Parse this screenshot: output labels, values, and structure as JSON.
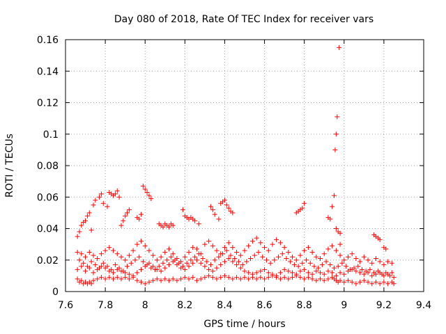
{
  "chart_data": {
    "type": "scatter",
    "title": "Day 080 of 2018, Rate Of TEC Index for receiver vars",
    "xlabel": "GPS time / hours",
    "ylabel": "ROTI / TECUs",
    "xlim": [
      7.6,
      9.4
    ],
    "ylim": [
      0,
      0.16
    ],
    "xticks": [
      "7.6",
      "7.8",
      "8",
      "8.2",
      "8.4",
      "8.6",
      "8.8",
      "9",
      "9.2",
      "9.4"
    ],
    "yticks": [
      "0",
      "0.02",
      "0.04",
      "0.06",
      "0.08",
      "0.1",
      "0.12",
      "0.14",
      "0.16"
    ],
    "grid": true,
    "marker": "+",
    "marker_color": "#ff0000",
    "series": [
      {
        "name": "ROTI",
        "x": [
          7.66,
          7.67,
          7.68,
          7.69,
          7.7,
          7.71,
          7.72,
          7.73,
          7.74,
          7.76,
          7.78,
          7.8,
          7.82,
          7.84,
          7.86,
          7.88,
          7.9,
          7.92,
          7.94,
          7.96,
          7.98,
          8.0,
          8.02,
          8.04,
          8.06,
          8.08,
          8.1,
          8.12,
          8.14,
          8.16,
          8.18,
          8.2,
          8.22,
          8.24,
          8.26,
          8.28,
          8.3,
          8.32,
          8.34,
          8.36,
          8.38,
          8.4,
          8.42,
          8.44,
          8.46,
          8.48,
          8.5,
          8.52,
          8.54,
          8.56,
          8.58,
          8.6,
          8.62,
          8.64,
          8.66,
          8.68,
          8.7,
          8.72,
          8.74,
          8.76,
          8.78,
          8.8,
          8.82,
          8.84,
          8.86,
          8.88,
          8.9,
          8.92,
          8.94,
          8.95,
          8.96,
          8.97,
          8.98,
          9.0,
          9.02,
          9.04,
          9.06,
          9.08,
          9.1,
          9.12,
          9.14,
          9.16,
          9.18,
          9.2,
          9.22,
          9.24,
          9.25,
          7.66,
          7.68,
          7.7,
          7.72,
          7.74,
          7.76,
          7.78,
          7.8,
          7.82,
          7.84,
          7.86,
          7.88,
          7.9,
          7.92,
          7.94,
          7.96,
          7.98,
          8.0,
          8.02,
          8.04,
          8.06,
          8.08,
          8.1,
          8.12,
          8.14,
          8.16,
          8.18,
          8.2,
          8.22,
          8.24,
          8.26,
          8.28,
          8.3,
          8.32,
          8.34,
          8.36,
          8.38,
          8.4,
          8.42,
          8.44,
          8.46,
          8.48,
          8.5,
          8.52,
          8.54,
          8.56,
          8.58,
          8.6,
          8.62,
          8.64,
          8.66,
          8.68,
          8.7,
          8.72,
          8.74,
          8.76,
          8.78,
          8.8,
          8.82,
          8.84,
          8.86,
          8.88,
          8.9,
          8.92,
          8.94,
          8.96,
          8.98,
          9.0,
          9.02,
          9.04,
          9.06,
          9.08,
          9.1,
          9.12,
          9.14,
          9.16,
          9.18,
          9.2,
          9.22,
          9.24,
          7.66,
          7.68,
          7.7,
          7.72,
          7.74,
          7.76,
          7.78,
          7.8,
          7.82,
          7.84,
          7.86,
          7.88,
          7.9,
          7.92,
          7.94,
          7.96,
          7.98,
          8.0,
          8.02,
          8.04,
          8.06,
          8.08,
          8.1,
          8.12,
          8.14,
          8.16,
          8.18,
          8.2,
          8.22,
          8.24,
          8.26,
          8.28,
          8.3,
          8.32,
          8.34,
          8.36,
          8.38,
          8.4,
          8.42,
          8.44,
          8.46,
          8.48,
          8.5,
          8.52,
          8.54,
          8.56,
          8.58,
          8.6,
          8.62,
          8.64,
          8.66,
          8.68,
          8.7,
          8.72,
          8.74,
          8.76,
          8.78,
          8.8,
          8.82,
          8.84,
          8.86,
          8.88,
          8.9,
          8.92,
          8.94,
          8.96,
          8.98,
          9.0,
          9.02,
          9.04,
          9.06,
          9.08,
          9.1,
          9.12,
          9.14,
          9.16,
          9.18,
          9.2,
          9.22,
          9.24,
          7.66,
          7.67,
          7.68,
          7.69,
          7.7,
          7.71,
          7.72,
          7.73,
          7.74,
          7.75,
          7.77,
          7.78,
          7.79,
          7.81,
          7.82,
          7.83,
          7.84,
          7.85,
          7.86,
          7.87,
          7.88,
          7.89,
          7.9,
          7.91,
          7.92,
          7.96,
          7.97,
          7.98,
          7.99,
          8.0,
          8.01,
          8.02,
          8.03,
          8.07,
          8.08,
          8.09,
          8.1,
          8.11,
          8.12,
          8.13,
          8.14,
          8.19,
          8.2,
          8.21,
          8.22,
          8.23,
          8.24,
          8.25,
          8.27,
          8.33,
          8.34,
          8.35,
          8.37,
          8.38,
          8.39,
          8.4,
          8.41,
          8.42,
          8.43,
          8.44,
          8.76,
          8.77,
          8.78,
          8.79,
          8.8,
          8.92,
          8.93,
          8.94,
          8.95,
          8.96,
          8.97,
          8.98,
          9.15,
          9.16,
          9.17,
          9.18,
          9.2,
          9.21,
          7.67,
          7.69,
          7.71,
          7.73,
          7.75,
          7.77,
          7.79,
          7.81,
          7.83,
          7.85,
          7.87,
          7.89,
          7.91,
          7.93,
          7.95,
          7.97,
          7.99,
          8.01,
          8.03,
          8.05,
          8.07,
          8.09,
          8.11,
          8.13,
          8.15,
          8.17,
          8.19,
          8.21,
          8.23,
          8.25,
          8.27,
          8.29,
          8.31,
          8.33,
          8.35,
          8.37,
          8.39,
          8.41,
          8.43,
          8.45,
          8.47,
          8.49,
          8.51,
          8.53,
          8.55,
          8.57,
          8.59,
          8.61,
          8.63,
          8.65,
          8.67,
          8.69,
          8.71,
          8.73,
          8.75,
          8.77,
          8.79,
          8.81,
          8.83,
          8.85,
          8.87,
          8.89,
          8.91,
          8.93,
          8.95,
          8.97,
          8.99,
          9.01,
          9.03,
          9.05,
          9.07,
          9.09,
          9.11,
          9.13,
          9.15,
          9.17,
          9.19,
          9.21,
          9.23,
          9.25,
          8.955,
          8.96,
          8.965,
          8.975,
          8.98
        ],
        "y": [
          0.008,
          0.006,
          0.007,
          0.005,
          0.006,
          0.005,
          0.006,
          0.005,
          0.007,
          0.008,
          0.009,
          0.008,
          0.009,
          0.008,
          0.009,
          0.008,
          0.009,
          0.008,
          0.009,
          0.007,
          0.006,
          0.005,
          0.006,
          0.007,
          0.008,
          0.007,
          0.008,
          0.007,
          0.008,
          0.007,
          0.008,
          0.009,
          0.008,
          0.009,
          0.007,
          0.008,
          0.009,
          0.01,
          0.009,
          0.008,
          0.009,
          0.01,
          0.009,
          0.008,
          0.009,
          0.008,
          0.009,
          0.008,
          0.009,
          0.008,
          0.009,
          0.008,
          0.009,
          0.01,
          0.009,
          0.008,
          0.009,
          0.008,
          0.009,
          0.01,
          0.009,
          0.008,
          0.009,
          0.008,
          0.007,
          0.008,
          0.007,
          0.008,
          0.009,
          0.008,
          0.007,
          0.006,
          0.007,
          0.006,
          0.007,
          0.006,
          0.005,
          0.006,
          0.007,
          0.006,
          0.005,
          0.006,
          0.005,
          0.006,
          0.005,
          0.006,
          0.005,
          0.014,
          0.016,
          0.013,
          0.015,
          0.012,
          0.014,
          0.016,
          0.015,
          0.013,
          0.012,
          0.014,
          0.013,
          0.012,
          0.011,
          0.01,
          0.012,
          0.014,
          0.016,
          0.018,
          0.016,
          0.014,
          0.013,
          0.015,
          0.017,
          0.019,
          0.017,
          0.015,
          0.014,
          0.016,
          0.018,
          0.02,
          0.018,
          0.016,
          0.014,
          0.013,
          0.015,
          0.017,
          0.019,
          0.021,
          0.019,
          0.017,
          0.015,
          0.013,
          0.012,
          0.011,
          0.012,
          0.013,
          0.014,
          0.012,
          0.011,
          0.01,
          0.012,
          0.014,
          0.013,
          0.012,
          0.011,
          0.013,
          0.014,
          0.012,
          0.011,
          0.013,
          0.012,
          0.011,
          0.013,
          0.012,
          0.01,
          0.012,
          0.011,
          0.013,
          0.014,
          0.013,
          0.012,
          0.011,
          0.012,
          0.01,
          0.011,
          0.012,
          0.01,
          0.011,
          0.012,
          0.025,
          0.024,
          0.022,
          0.025,
          0.023,
          0.021,
          0.024,
          0.026,
          0.028,
          0.026,
          0.024,
          0.022,
          0.02,
          0.023,
          0.026,
          0.03,
          0.032,
          0.029,
          0.026,
          0.023,
          0.02,
          0.022,
          0.025,
          0.027,
          0.024,
          0.021,
          0.019,
          0.022,
          0.025,
          0.028,
          0.027,
          0.024,
          0.03,
          0.032,
          0.029,
          0.026,
          0.024,
          0.028,
          0.031,
          0.028,
          0.025,
          0.023,
          0.026,
          0.029,
          0.032,
          0.034,
          0.031,
          0.028,
          0.026,
          0.03,
          0.033,
          0.031,
          0.028,
          0.025,
          0.022,
          0.02,
          0.023,
          0.026,
          0.028,
          0.025,
          0.022,
          0.021,
          0.024,
          0.027,
          0.029,
          0.026,
          0.023,
          0.02,
          0.022,
          0.024,
          0.021,
          0.019,
          0.022,
          0.02,
          0.018,
          0.021,
          0.019,
          0.017,
          0.019,
          0.018,
          0.035,
          0.038,
          0.042,
          0.044,
          0.045,
          0.048,
          0.05,
          0.039,
          0.055,
          0.058,
          0.06,
          0.062,
          0.056,
          0.054,
          0.063,
          0.062,
          0.061,
          0.062,
          0.064,
          0.06,
          0.042,
          0.045,
          0.048,
          0.05,
          0.052,
          0.047,
          0.046,
          0.049,
          0.067,
          0.065,
          0.063,
          0.061,
          0.059,
          0.043,
          0.042,
          0.041,
          0.043,
          0.042,
          0.041,
          0.043,
          0.042,
          0.052,
          0.048,
          0.047,
          0.046,
          0.047,
          0.046,
          0.045,
          0.043,
          0.054,
          0.052,
          0.049,
          0.046,
          0.056,
          0.057,
          0.058,
          0.055,
          0.053,
          0.051,
          0.05,
          0.05,
          0.051,
          0.052,
          0.053,
          0.056,
          0.047,
          0.046,
          0.054,
          0.061,
          0.04,
          0.038,
          0.037,
          0.036,
          0.035,
          0.034,
          0.033,
          0.028,
          0.027,
          0.02,
          0.018,
          0.016,
          0.019,
          0.017,
          0.015,
          0.018,
          0.016,
          0.014,
          0.017,
          0.015,
          0.013,
          0.016,
          0.018,
          0.02,
          0.022,
          0.019,
          0.017,
          0.015,
          0.014,
          0.016,
          0.018,
          0.02,
          0.022,
          0.02,
          0.018,
          0.016,
          0.018,
          0.02,
          0.022,
          0.024,
          0.021,
          0.019,
          0.017,
          0.02,
          0.022,
          0.024,
          0.026,
          0.023,
          0.021,
          0.019,
          0.017,
          0.019,
          0.021,
          0.023,
          0.025,
          0.022,
          0.02,
          0.018,
          0.02,
          0.022,
          0.024,
          0.021,
          0.019,
          0.017,
          0.016,
          0.018,
          0.02,
          0.018,
          0.016,
          0.015,
          0.017,
          0.019,
          0.017,
          0.015,
          0.016,
          0.018,
          0.016,
          0.014,
          0.015,
          0.016,
          0.014,
          0.013,
          0.014,
          0.012,
          0.013,
          0.011,
          0.012,
          0.01,
          0.009,
          0.09,
          0.1,
          0.111,
          0.155,
          0.03
        ]
      }
    ]
  }
}
